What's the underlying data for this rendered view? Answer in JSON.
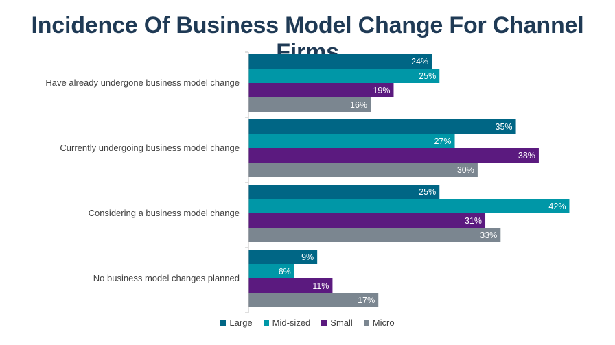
{
  "chart_data": {
    "type": "bar",
    "orientation": "horizontal",
    "title": "Incidence Of Business Model Change For Channel Firms",
    "categories": [
      "Have already undergone business model change",
      "Currently undergoing business model change",
      "Considering a business model change",
      "No business model changes planned"
    ],
    "series": [
      {
        "name": "Large",
        "color": "#006685",
        "values": [
          24,
          35,
          25,
          9
        ]
      },
      {
        "name": "Mid-sized",
        "color": "#0097a7",
        "values": [
          25,
          27,
          42,
          6
        ]
      },
      {
        "name": "Small",
        "color": "#5b1a7f",
        "values": [
          19,
          38,
          31,
          11
        ]
      },
      {
        "name": "Micro",
        "color": "#7b8690",
        "values": [
          16,
          30,
          33,
          17
        ]
      }
    ],
    "value_suffix": "%",
    "xlim": [
      0,
      45
    ],
    "legend_position": "bottom"
  }
}
